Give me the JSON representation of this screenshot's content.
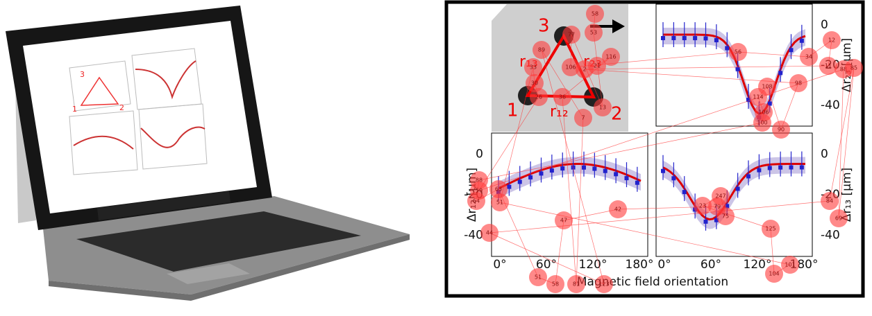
{
  "figure": {
    "xlabel": "Magnetic field orientation",
    "triangle_labels": [
      "1",
      "2",
      "3"
    ],
    "edge_labels": [
      "r₁₃",
      "r₂₃",
      "r₁₂"
    ],
    "panels": [
      {
        "ylabel": "Δr₂₃ [μm]",
        "yticks": [
          "0",
          "-20",
          "-40"
        ]
      },
      {
        "ylabel": "Δr₁₂ [μm]",
        "yticks": [
          "0",
          "-20",
          "-40"
        ],
        "xticks": [
          "0°",
          "60°",
          "120°",
          "180°"
        ]
      },
      {
        "ylabel": "Δr₁₃ [μm]",
        "yticks": [
          "0",
          "-20",
          "-40"
        ],
        "xticks": [
          "0°",
          "60°",
          "120°",
          "180°"
        ]
      }
    ]
  },
  "fixations": [
    "58",
    "53",
    "13",
    "77",
    "106",
    "56",
    "34",
    "12",
    "11",
    "2",
    "98",
    "90",
    "108",
    "114",
    "106",
    "100",
    "88",
    "64",
    "63",
    "51",
    "58",
    "47",
    "42",
    "79",
    "75",
    "247",
    "23",
    "125",
    "104",
    "101",
    "51",
    "33",
    "30",
    "26",
    "50",
    "88",
    "69",
    "85",
    "84",
    "44",
    "123",
    "89",
    "7",
    "81",
    "36",
    "116",
    "21"
  ]
}
